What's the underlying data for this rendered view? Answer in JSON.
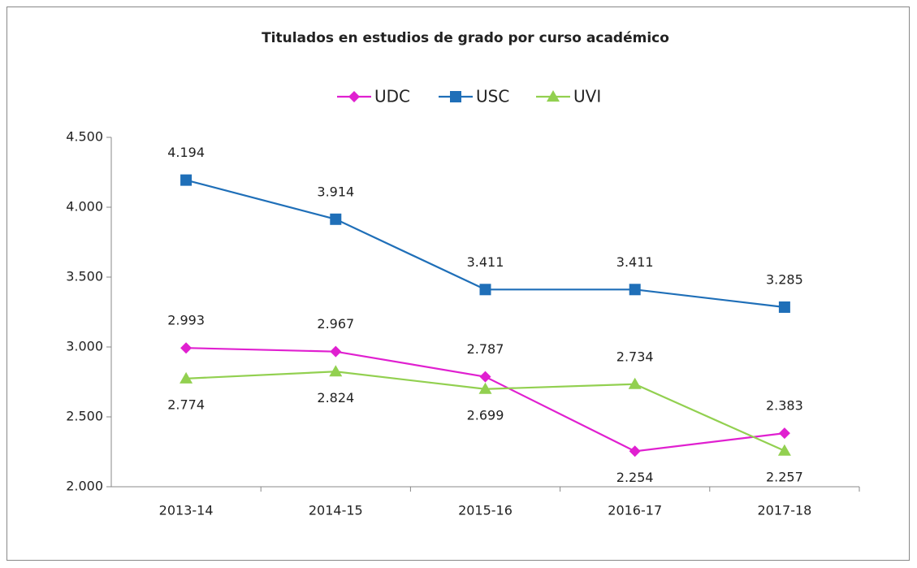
{
  "chart_data": {
    "type": "line",
    "title": "Titulados en estudios de grado por curso académico",
    "categories": [
      "2013-14",
      "2014-15",
      "2015-16",
      "2016-17",
      "2017-18"
    ],
    "series": [
      {
        "name": "UDC",
        "color": "#e020d0",
        "marker": "diamond",
        "values": [
          2993,
          2967,
          2787,
          2254,
          2383
        ],
        "value_labels": [
          "2.993",
          "2.967",
          "2.787",
          "2.254",
          "2.383"
        ]
      },
      {
        "name": "USC",
        "color": "#1f6fb8",
        "marker": "square",
        "values": [
          4194,
          3914,
          3411,
          3411,
          3285
        ],
        "value_labels": [
          "4.194",
          "3.914",
          "3.411",
          "3.411",
          "3.285"
        ]
      },
      {
        "name": "UVI",
        "color": "#92d050",
        "marker": "triangle",
        "values": [
          2774,
          2824,
          2699,
          2734,
          2257
        ],
        "value_labels": [
          "2.774",
          "2.824",
          "2.699",
          "2.734",
          "2.257"
        ]
      }
    ],
    "ylim": [
      2000,
      4500
    ],
    "yticks": [
      {
        "value": 2000,
        "label": "2.000"
      },
      {
        "value": 2500,
        "label": "2.500"
      },
      {
        "value": 3000,
        "label": "3.000"
      },
      {
        "value": 3500,
        "label": "3.500"
      },
      {
        "value": 4000,
        "label": "4.000"
      },
      {
        "value": 4500,
        "label": "4.500"
      }
    ],
    "legend": "top"
  }
}
